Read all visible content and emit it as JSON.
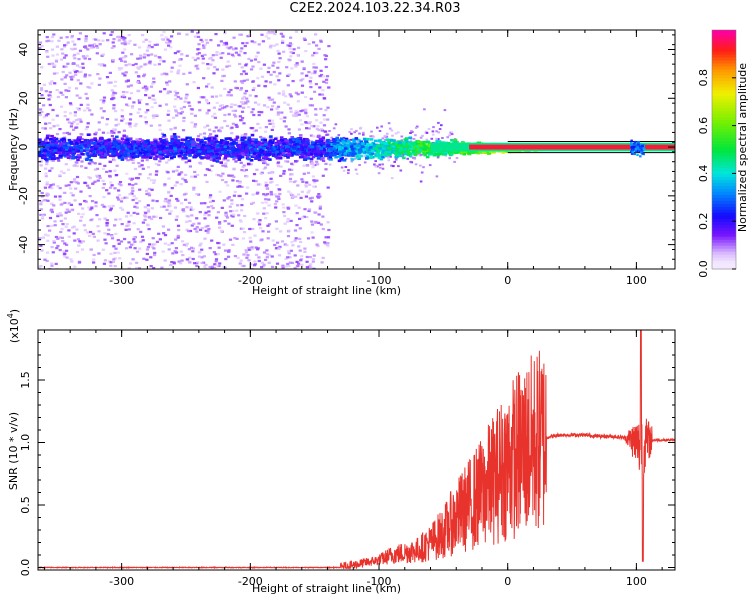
{
  "page_title": "C2E2.2024.103.22.34.R03",
  "chart_data": [
    {
      "type": "heatmap",
      "title": "C2E2.2024.103.22.34.R03",
      "xlabel": "Height of straight line (km)",
      "ylabel": "Frequency (Hz)",
      "xlim": [
        -365,
        130
      ],
      "ylim": [
        -50,
        48
      ],
      "x_ticks": [
        -300,
        -200,
        -100,
        0,
        100
      ],
      "x_tick_labels": [
        "-300",
        "-200",
        "-100",
        "0",
        "100"
      ],
      "y_ticks": [
        40,
        20,
        0,
        -20,
        -40
      ],
      "y_tick_labels": [
        "40",
        "20",
        "0",
        "-20",
        "-40"
      ],
      "colorbar": {
        "label": "Normalized spectral amplitude",
        "range": [
          0,
          1
        ],
        "ticks": [
          0.0,
          0.2,
          0.4,
          0.6,
          0.8
        ],
        "tick_labels": [
          "0.0",
          "0.2",
          "0.4",
          "0.6",
          "0.8"
        ],
        "colormap": "rainbow"
      },
      "features": [
        {
          "x_range": [
            -365,
            -140
          ],
          "freq_spread_hz": 48,
          "amplitude": 0.1
        },
        {
          "x_range": [
            -365,
            -140
          ],
          "freq_spread_hz": 10,
          "amplitude": 0.22
        },
        {
          "x_range": [
            -140,
            -60
          ],
          "freq_spread_hz": 10,
          "amplitude": 0.45
        },
        {
          "x_range": [
            -60,
            0
          ],
          "freq_spread_hz": 5,
          "amplitude": 0.55
        },
        {
          "x_range": [
            0,
            130
          ],
          "freq_spread_hz": 1,
          "amplitude": 0.95
        },
        {
          "x_range": [
            95,
            105
          ],
          "freq_spread_hz": 8,
          "amplitude": 0.3
        }
      ]
    },
    {
      "type": "line",
      "xlabel": "Height of straight line (km)",
      "ylabel": "SNR (10 * v/v)",
      "y_multiplier_label": "(x10",
      "y_multiplier_exp": "4",
      "xlim": [
        -365,
        130
      ],
      "ylim": [
        -0.02,
        1.9
      ],
      "x_ticks": [
        -300,
        -200,
        -100,
        0,
        100
      ],
      "x_tick_labels": [
        "-300",
        "-200",
        "-100",
        "0",
        "100"
      ],
      "y_ticks": [
        0.0,
        0.5,
        1.0,
        1.5
      ],
      "y_tick_labels": [
        "0.0",
        "0.5",
        "1.0",
        "1.5"
      ],
      "series": [
        {
          "color": "#e8332d",
          "x": [
            -365,
            -300,
            -200,
            -130,
            -120,
            -100,
            -90,
            -80,
            -70,
            -60,
            -50,
            -40,
            -30,
            -20,
            -10,
            0,
            10,
            20,
            30,
            40,
            50,
            60,
            70,
            80,
            90,
            95,
            100,
            103,
            106,
            110,
            120,
            130
          ],
          "y": [
            0.0,
            0.0,
            0.0,
            0.0,
            0.02,
            0.06,
            0.1,
            0.12,
            0.14,
            0.2,
            0.28,
            0.4,
            0.5,
            0.6,
            0.72,
            0.84,
            0.93,
            0.99,
            1.04,
            1.06,
            1.06,
            1.06,
            1.05,
            1.05,
            1.04,
            1.03,
            1.0,
            0.95,
            0.98,
            1.02,
            1.02,
            1.02
          ]
        }
      ]
    }
  ]
}
